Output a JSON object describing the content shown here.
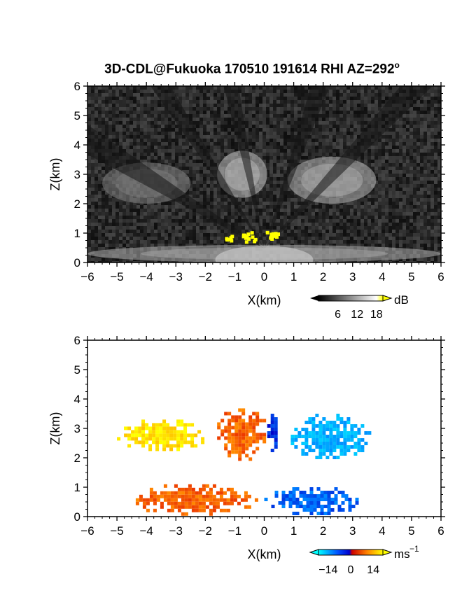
{
  "title": {
    "main": "3D-CDL@Fukuoka 170510 191614 RHI AZ=292",
    "deg": "o"
  },
  "chart_data": [
    {
      "type": "heatmap",
      "name": "reflectivity-panel",
      "xlabel": "X(km)",
      "ylabel": "Z(km)",
      "xlim": [
        -6,
        6
      ],
      "ylim": [
        0,
        6
      ],
      "xticks": [
        "-6",
        "-5",
        "-4",
        "-3",
        "-2",
        "-1",
        "0",
        "1",
        "2",
        "3",
        "4",
        "5",
        "6"
      ],
      "yticks": [
        "0",
        "1",
        "2",
        "3",
        "4",
        "5",
        "6"
      ],
      "background": "noise",
      "colorbar": {
        "unit": "dB",
        "ticks": [
          "6",
          "12",
          "18"
        ],
        "range": [
          0,
          20
        ],
        "colors": [
          "#000000",
          "#ffffff",
          "#ffff00"
        ]
      },
      "features": [
        {
          "kind": "echo",
          "label": "bright near-surface band",
          "x": [
            -6,
            6
          ],
          "z": [
            0,
            0.6
          ],
          "value_db": 12
        },
        {
          "kind": "echo",
          "label": "left upper arm",
          "x": [
            -5.5,
            -2.5
          ],
          "z": [
            2.0,
            3.4
          ],
          "value_db": 8
        },
        {
          "kind": "echo",
          "label": "center upper region",
          "x": [
            -1.6,
            0.1
          ],
          "z": [
            2.2,
            3.8
          ],
          "value_db": 14
        },
        {
          "kind": "echo",
          "label": "right upper region",
          "x": [
            0.8,
            3.8
          ],
          "z": [
            2.0,
            3.6
          ],
          "value_db": 13
        },
        {
          "kind": "hotspot",
          "label": "yellow patches",
          "points": [
            [
              -1.3,
              0.9
            ],
            [
              -0.6,
              0.95
            ],
            [
              -0.5,
              0.85
            ],
            [
              0.2,
              1.0
            ],
            [
              0.3,
              0.95
            ]
          ],
          "value_db": 20
        }
      ]
    },
    {
      "type": "heatmap",
      "name": "velocity-panel",
      "xlabel": "X(km)",
      "ylabel": "Z(km)",
      "xlim": [
        -6,
        6
      ],
      "ylim": [
        0,
        6
      ],
      "xticks": [
        "-6",
        "-5",
        "-4",
        "-3",
        "-2",
        "-1",
        "0",
        "1",
        "2",
        "3",
        "4",
        "5",
        "6"
      ],
      "yticks": [
        "0",
        "1",
        "2",
        "3",
        "4",
        "5",
        "6"
      ],
      "colorbar": {
        "unit": "ms",
        "unit_exp": "-1",
        "ticks": [
          "-14",
          "0",
          "14"
        ],
        "range": [
          -20,
          20
        ],
        "colors": [
          "#00ffff",
          "#0000ff",
          "#ff0000",
          "#ffff00"
        ]
      },
      "regions": [
        {
          "label": "upper-left yellow",
          "x": [
            -5.0,
            -1.9
          ],
          "z": [
            2.2,
            3.3
          ],
          "value": 18
        },
        {
          "label": "upper-center orange-red",
          "x": [
            -1.6,
            0.1
          ],
          "z": [
            1.9,
            3.8
          ],
          "value": 8
        },
        {
          "label": "upper-center blue",
          "x": [
            0.1,
            0.5
          ],
          "z": [
            2.2,
            3.5
          ],
          "value": -4
        },
        {
          "label": "upper-right cyan",
          "x": [
            0.9,
            3.6
          ],
          "z": [
            1.9,
            3.5
          ],
          "value": -13
        },
        {
          "label": "lower-left orange",
          "x": [
            -4.6,
            -0.2
          ],
          "z": [
            0.05,
            1.1
          ],
          "value": 8
        },
        {
          "label": "lower-right blue",
          "x": [
            0.0,
            3.4
          ],
          "z": [
            0.05,
            1.0
          ],
          "value": -7
        }
      ]
    }
  ]
}
